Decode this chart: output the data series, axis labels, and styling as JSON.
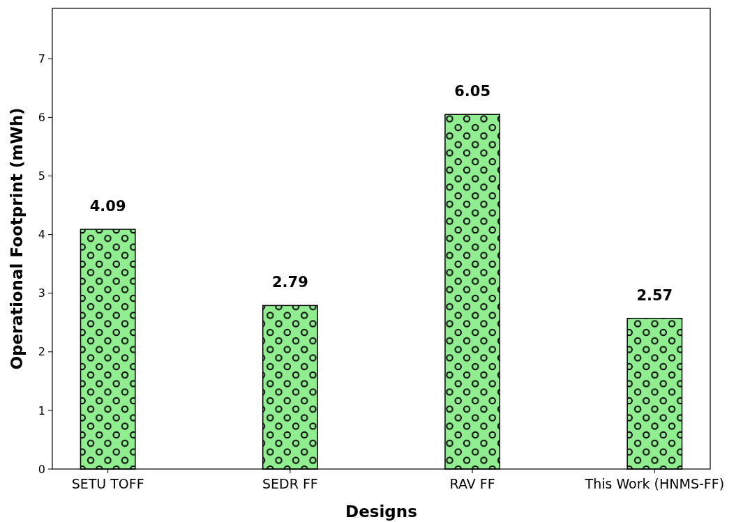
{
  "chart_data": {
    "type": "bar",
    "xlabel": "Designs",
    "ylabel": "Operational Footprint (mWh)",
    "categories": [
      "SETU TOFF",
      "SEDR FF",
      "RAV FF",
      "This Work (HNMS-FF)"
    ],
    "values": [
      4.09,
      2.79,
      6.05,
      2.57
    ],
    "color": "#90ee90",
    "ylim": [
      0,
      7.86
    ],
    "yticks": [
      0,
      1,
      2,
      3,
      4,
      5,
      6,
      7
    ],
    "grid": false,
    "data_labels": true
  }
}
